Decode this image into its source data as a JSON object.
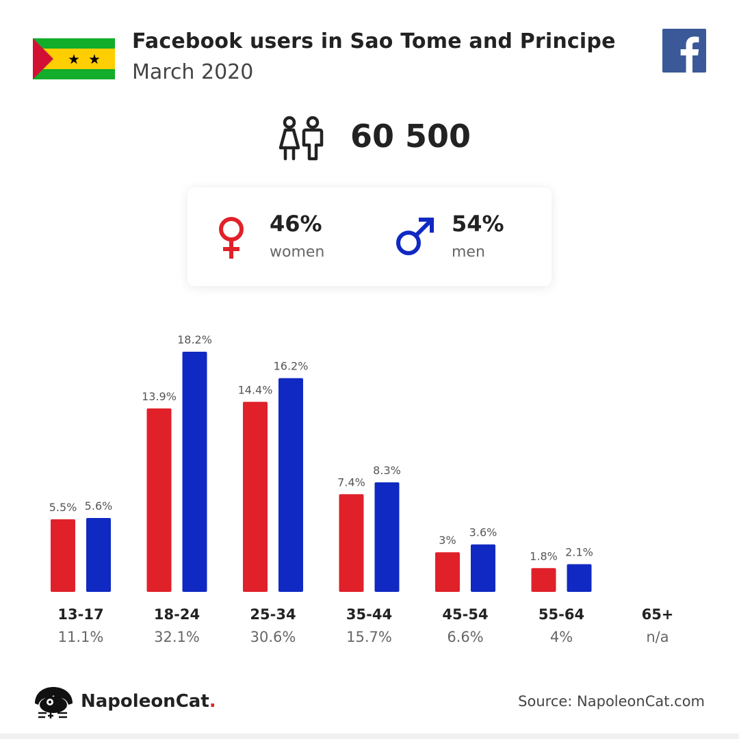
{
  "header": {
    "title": "Facebook users in Sao Tome and Principe",
    "subtitle": "March 2020",
    "flag_colors": {
      "green": "#12AD2B",
      "yellow": "#FFCE00",
      "red": "#D21034",
      "star": "#000000"
    }
  },
  "total": {
    "value": "60 500",
    "icon": "users-icon"
  },
  "gender": {
    "women": {
      "pct": "46%",
      "label": "women",
      "color": "#e0212a",
      "icon": "female-icon"
    },
    "men": {
      "pct": "54%",
      "label": "men",
      "color": "#1029c2",
      "icon": "male-icon"
    }
  },
  "chart_data": {
    "type": "bar",
    "categories": [
      "13-17",
      "18-24",
      "25-34",
      "35-44",
      "45-54",
      "55-64",
      "65+"
    ],
    "category_totals": [
      "11.1%",
      "32.1%",
      "30.6%",
      "15.7%",
      "6.6%",
      "4%",
      "n/a"
    ],
    "series": [
      {
        "values": [
          5.5,
          13.9,
          14.4,
          7.4,
          3,
          1.8,
          null
        ],
        "labels": [
          "5.5%",
          "13.9%",
          "14.4%",
          "7.4%",
          "3%",
          "1.8%",
          ""
        ],
        "color": "#e0212a"
      },
      {
        "values": [
          5.6,
          18.2,
          16.2,
          8.3,
          3.6,
          2.1,
          null
        ],
        "labels": [
          "5.6%",
          "18.2%",
          "16.2%",
          "8.3%",
          "3.6%",
          "2.1%",
          ""
        ],
        "color": "#1029c2"
      }
    ],
    "title": "",
    "xlabel": "",
    "ylabel": "",
    "ylim": [
      0,
      18.2
    ],
    "grid": false,
    "legend": "none"
  },
  "footer": {
    "brand": "NapoleonCat",
    "brand_dot": ".",
    "source": "Source: NapoleonCat.com"
  }
}
